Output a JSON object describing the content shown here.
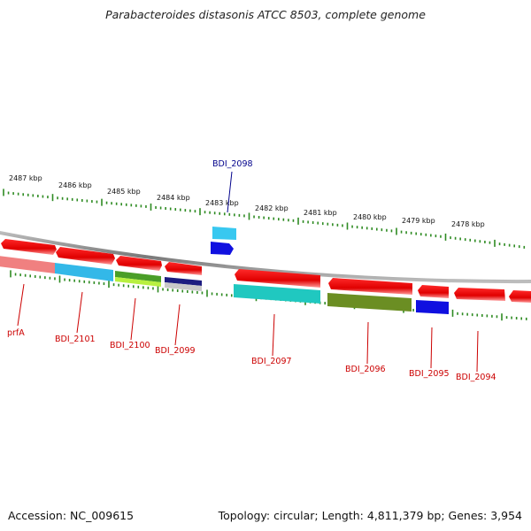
{
  "title": "Parabacteroides distasonis ATCC 8503, complete genome",
  "footer": {
    "accession": "Accession: NC_009615",
    "summary": "Topology: circular; Length: 4,811,379 bp; Genes: 3,954"
  },
  "colors": {
    "backbone": "#8a8a8a",
    "tick": "#2e8b22",
    "label_red": "#cc0000",
    "label_blue": "#00008b"
  },
  "scale_labels": [
    "2487 kbp",
    "2486 kbp",
    "2485 kbp",
    "2484 kbp",
    "2483 kbp",
    "2482 kbp",
    "2481 kbp",
    "2480 kbp",
    "2479 kbp",
    "2478 kbp"
  ],
  "genes": [
    {
      "label": "prfA",
      "color": "#f08080",
      "strand": "minus-outer"
    },
    {
      "label": "BDI_2101",
      "color": "#33b8e8",
      "strand": "minus-outer"
    },
    {
      "label": "BDI_2100",
      "color": "#8fe83a",
      "strand": "minus-outer"
    },
    {
      "label": "BDI_2099",
      "color": "#1c1c80",
      "strand": "minus-outer"
    },
    {
      "label": "BDI_2098",
      "color": "#38c8f0",
      "strand": "plus-outer"
    },
    {
      "label": "BDI_2097",
      "color": "#20c8c0",
      "strand": "minus-outer"
    },
    {
      "label": "BDI_2096",
      "color": "#6b8e23",
      "strand": "minus-outer"
    },
    {
      "label": "BDI_2095",
      "color": "#1010e0",
      "strand": "minus-outer"
    },
    {
      "label": "BDI_2094",
      "color": "#ff1010",
      "strand": "minus-outer"
    }
  ]
}
